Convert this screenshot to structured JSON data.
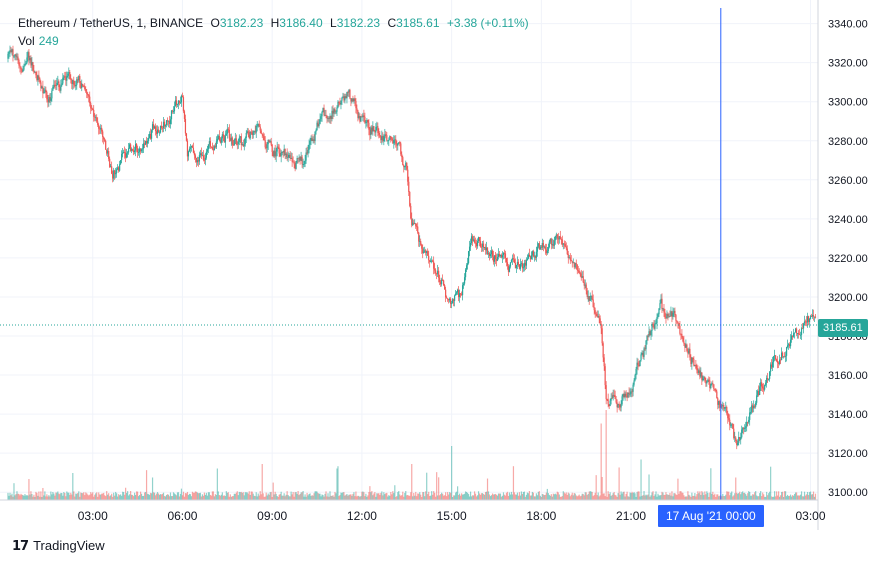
{
  "legend": {
    "symbol": "Ethereum / TetherUS, 1, BINANCE",
    "open_label": "O",
    "open": "3182.23",
    "high_label": "H",
    "high": "3186.40",
    "low_label": "L",
    "low": "3182.23",
    "close_label": "C",
    "close": "3185.61",
    "change": "+3.38 (+0.11%)",
    "vol_label": "Vol",
    "vol_value": "249"
  },
  "colors": {
    "up": "#26a69a",
    "down": "#ef5350",
    "crosshair": "#2962ff",
    "grid": "#f0f3fa",
    "axis_text": "#131722"
  },
  "last_price_label": "3185.61",
  "crosshair_time_label": "17 Aug '21   00:00",
  "brand": "TradingView",
  "chart_data": {
    "type": "candlestick",
    "interval": "1 minute",
    "y_axis": {
      "range": [
        3096,
        3348
      ],
      "ticks": [
        "3100.00",
        "3120.00",
        "3140.00",
        "3160.00",
        "3180.00",
        "3200.00",
        "3220.00",
        "3240.00",
        "3260.00",
        "3280.00",
        "3300.00",
        "3320.00",
        "3340.00"
      ]
    },
    "x_axis": {
      "ticks": [
        "03:00",
        "06:00",
        "09:00",
        "12:00",
        "15:00",
        "18:00",
        "21:00",
        "03:00"
      ]
    },
    "last_price": 3185.61,
    "close_path": [
      {
        "t": "00:50",
        "price": 3322
      },
      {
        "t": "01:10",
        "price": 3312
      },
      {
        "t": "01:30",
        "price": 3303
      },
      {
        "t": "02:00",
        "price": 3310
      },
      {
        "t": "02:30",
        "price": 3313
      },
      {
        "t": "02:50",
        "price": 3308
      },
      {
        "t": "03:10",
        "price": 3290
      },
      {
        "t": "03:40",
        "price": 3265
      },
      {
        "t": "04:00",
        "price": 3270
      },
      {
        "t": "04:30",
        "price": 3278
      },
      {
        "t": "05:00",
        "price": 3285
      },
      {
        "t": "05:30",
        "price": 3290
      },
      {
        "t": "06:00",
        "price": 3305
      },
      {
        "t": "06:10",
        "price": 3275
      },
      {
        "t": "06:30",
        "price": 3268
      },
      {
        "t": "07:00",
        "price": 3278
      },
      {
        "t": "07:30",
        "price": 3282
      },
      {
        "t": "08:00",
        "price": 3277
      },
      {
        "t": "08:30",
        "price": 3285
      },
      {
        "t": "09:00",
        "price": 3275
      },
      {
        "t": "09:30",
        "price": 3272
      },
      {
        "t": "10:00",
        "price": 3268
      },
      {
        "t": "10:40",
        "price": 3292
      },
      {
        "t": "11:10",
        "price": 3298
      },
      {
        "t": "11:30",
        "price": 3304
      },
      {
        "t": "12:00",
        "price": 3290
      },
      {
        "t": "12:30",
        "price": 3285
      },
      {
        "t": "13:00",
        "price": 3283
      },
      {
        "t": "13:30",
        "price": 3265
      },
      {
        "t": "13:40",
        "price": 3240
      },
      {
        "t": "14:00",
        "price": 3222
      },
      {
        "t": "14:30",
        "price": 3215
      },
      {
        "t": "15:00",
        "price": 3196
      },
      {
        "t": "15:20",
        "price": 3200
      },
      {
        "t": "15:40",
        "price": 3235
      },
      {
        "t": "16:10",
        "price": 3225
      },
      {
        "t": "16:40",
        "price": 3218
      },
      {
        "t": "17:10",
        "price": 3213
      },
      {
        "t": "17:40",
        "price": 3218
      },
      {
        "t": "18:10",
        "price": 3225
      },
      {
        "t": "18:40",
        "price": 3228
      },
      {
        "t": "19:10",
        "price": 3215
      },
      {
        "t": "19:40",
        "price": 3200
      },
      {
        "t": "20:00",
        "price": 3190
      },
      {
        "t": "20:10",
        "price": 3150
      },
      {
        "t": "20:30",
        "price": 3145
      },
      {
        "t": "21:00",
        "price": 3155
      },
      {
        "t": "21:30",
        "price": 3175
      },
      {
        "t": "22:00",
        "price": 3192
      },
      {
        "t": "22:30",
        "price": 3190
      },
      {
        "t": "23:00",
        "price": 3170
      },
      {
        "t": "23:30",
        "price": 3155
      },
      {
        "t": "00:00",
        "price": 3145
      },
      {
        "t": "00:30",
        "price": 3125
      },
      {
        "t": "01:00",
        "price": 3140
      },
      {
        "t": "01:30",
        "price": 3160
      },
      {
        "t": "02:00",
        "price": 3172
      },
      {
        "t": "02:30",
        "price": 3180
      },
      {
        "t": "02:50",
        "price": 3190
      },
      {
        "t": "03:10",
        "price": 3185
      }
    ],
    "volume_spikes": [
      {
        "t": "02:20",
        "relative": 0.3
      },
      {
        "t": "05:00",
        "relative": 0.25
      },
      {
        "t": "07:10",
        "relative": 0.35
      },
      {
        "t": "08:40",
        "relative": 0.4
      },
      {
        "t": "11:10",
        "relative": 0.35
      },
      {
        "t": "13:40",
        "relative": 0.4
      },
      {
        "t": "15:00",
        "relative": 0.6
      },
      {
        "t": "20:00",
        "relative": 0.85
      },
      {
        "t": "20:10",
        "relative": 1.0
      },
      {
        "t": "21:20",
        "relative": 0.45
      },
      {
        "t": "00:30",
        "relative": 0.25
      }
    ]
  }
}
